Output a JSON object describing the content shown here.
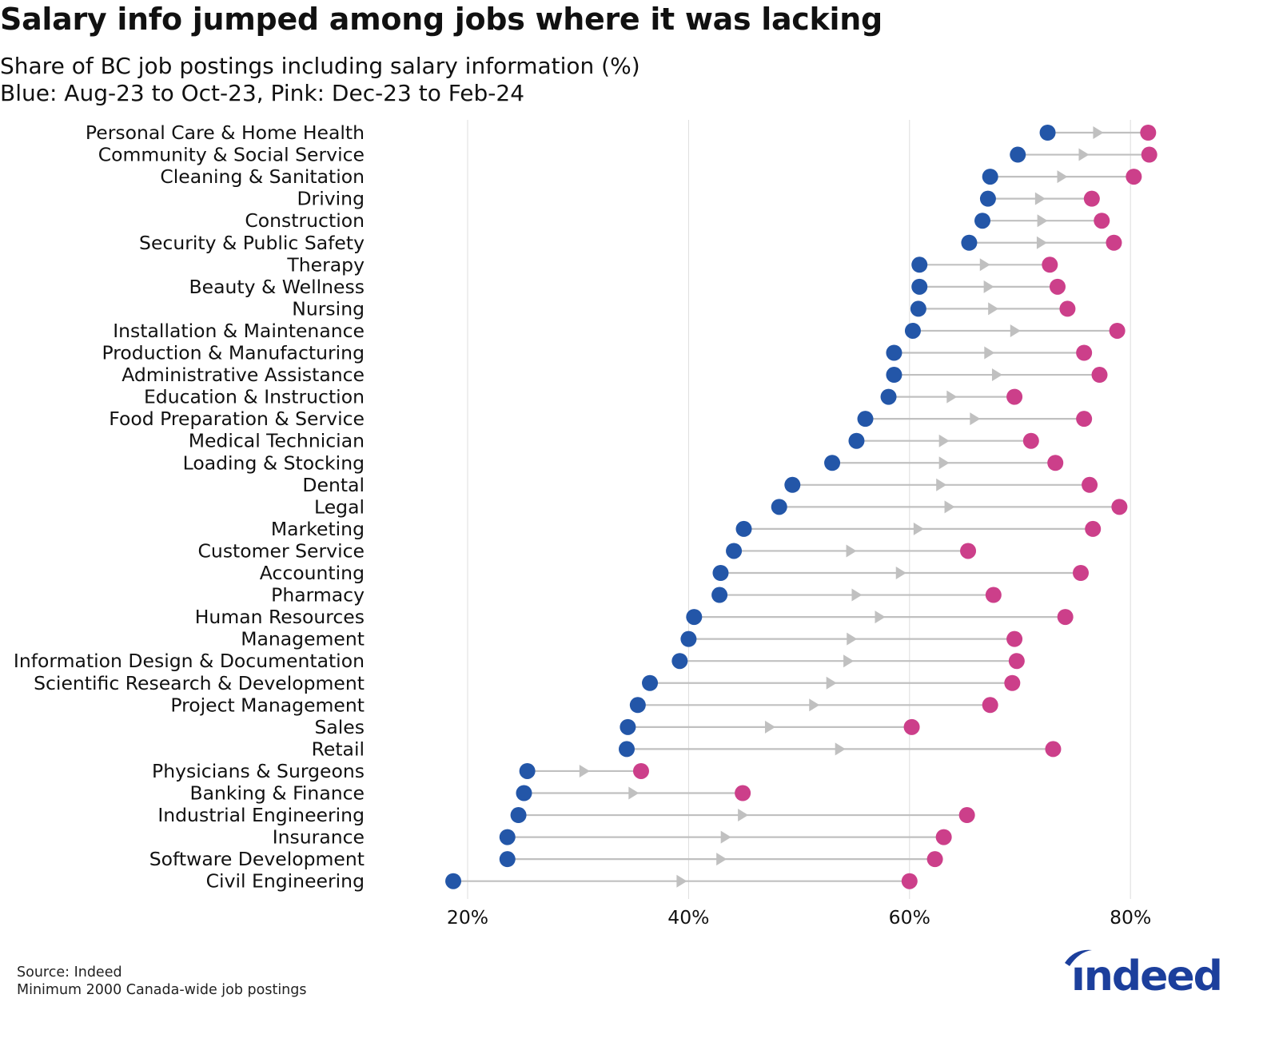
{
  "title": "Salary info jumped among jobs where it was lacking",
  "subtitle_line1": "Share of BC job postings including salary information (%)",
  "subtitle_line2": "Blue: Aug-23 to Oct-23, Pink: Dec-23 to Feb-24",
  "source": "Source: Indeed",
  "note": "Minimum 2000 Canada-wide job postings",
  "logo_text": "indeed",
  "colors": {
    "start": "#2356a8",
    "end": "#cc3f8a",
    "connector": "#c0c0c0",
    "grid": "#dddddd",
    "logo": "#1c3f9c"
  },
  "chart_data": {
    "type": "dumbbell",
    "xlim": [
      18,
      83
    ],
    "x_ticks": [
      20,
      40,
      60,
      80
    ],
    "x_tick_labels": [
      "20%",
      "40%",
      "60%",
      "80%"
    ],
    "grid": "vertical",
    "series": [
      {
        "name": "Blue: Aug-23 to Oct-23",
        "color": "#2356a8"
      },
      {
        "name": "Pink: Dec-23 to Feb-24",
        "color": "#cc3f8a"
      }
    ],
    "categories": [
      "Personal Care & Home Health",
      "Community & Social Service",
      "Cleaning & Sanitation",
      "Driving",
      "Construction",
      "Security & Public Safety",
      "Therapy",
      "Beauty & Wellness",
      "Nursing",
      "Installation & Maintenance",
      "Production & Manufacturing",
      "Administrative Assistance",
      "Education & Instruction",
      "Food Preparation & Service",
      "Medical Technician",
      "Loading & Stocking",
      "Dental",
      "Legal",
      "Marketing",
      "Customer Service",
      "Accounting",
      "Pharmacy",
      "Human Resources",
      "Management",
      "Information Design & Documentation",
      "Scientific Research & Development",
      "Project Management",
      "Sales",
      "Retail",
      "Physicians & Surgeons",
      "Banking & Finance",
      "Industrial Engineering",
      "Insurance",
      "Software Development",
      "Civil Engineering"
    ],
    "start": [
      72.5,
      69.8,
      67.3,
      67.1,
      66.6,
      65.4,
      60.9,
      60.9,
      60.8,
      60.3,
      58.6,
      58.6,
      58.1,
      56.0,
      55.2,
      53.0,
      49.4,
      48.2,
      45.0,
      44.1,
      42.9,
      42.8,
      40.5,
      40.0,
      39.2,
      36.5,
      35.4,
      34.5,
      34.4,
      25.4,
      25.1,
      24.6,
      23.6,
      23.6,
      18.7
    ],
    "end": [
      81.6,
      81.7,
      80.3,
      76.5,
      77.4,
      78.5,
      72.7,
      73.4,
      74.3,
      78.8,
      75.8,
      77.2,
      69.5,
      75.8,
      71.0,
      73.2,
      76.3,
      79.0,
      76.6,
      65.3,
      75.5,
      67.6,
      74.1,
      69.5,
      69.7,
      69.3,
      67.3,
      60.2,
      73.0,
      35.7,
      44.9,
      65.2,
      63.1,
      62.3,
      60.0
    ]
  }
}
